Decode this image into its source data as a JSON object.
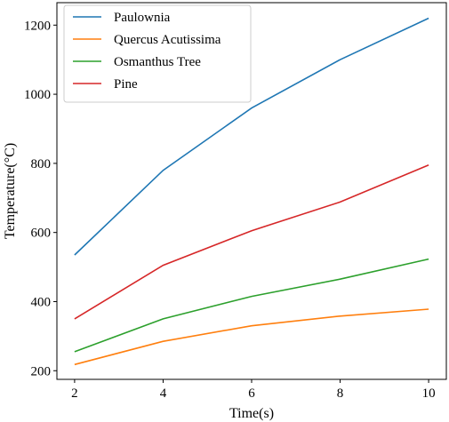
{
  "chart_data": {
    "type": "line",
    "title": "",
    "xlabel": "Time(s)",
    "ylabel": "Temperature(°C)",
    "x": [
      2,
      4,
      6,
      8,
      10
    ],
    "xticks": [
      2,
      4,
      6,
      8,
      10
    ],
    "yticks": [
      200,
      400,
      600,
      800,
      1000,
      1200
    ],
    "xlim": [
      1.6,
      10.4
    ],
    "ylim": [
      175,
      1265
    ],
    "grid": false,
    "legend_position": "top-left",
    "series": [
      {
        "name": "Paulownia",
        "color": "#1f77b4",
        "values": [
          535,
          780,
          960,
          1100,
          1220
        ]
      },
      {
        "name": "Quercus Acutissima",
        "color": "#ff7f0e",
        "values": [
          218,
          285,
          330,
          358,
          378
        ]
      },
      {
        "name": "Osmanthus Tree",
        "color": "#2ca02c",
        "values": [
          255,
          350,
          415,
          465,
          523
        ]
      },
      {
        "name": "Pine",
        "color": "#d62728",
        "values": [
          350,
          505,
          605,
          688,
          795
        ]
      }
    ]
  }
}
